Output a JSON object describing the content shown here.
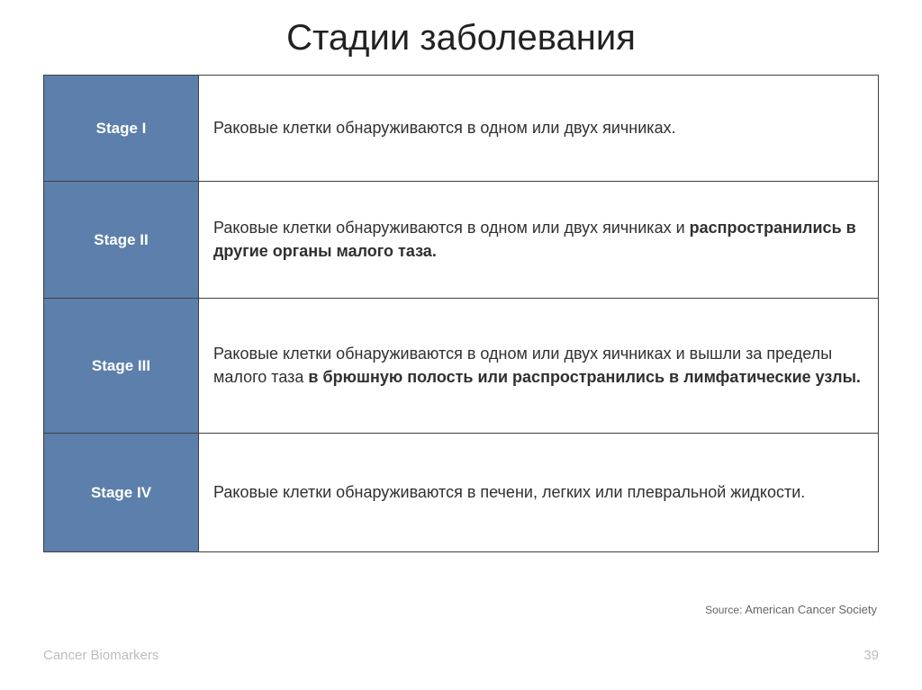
{
  "title": "Стадии заболевания",
  "table": {
    "rows": [
      {
        "stage": "Stage I",
        "desc_plain": "Раковые клетки обнаруживаются в одном или двух яичниках.",
        "desc_bold": ""
      },
      {
        "stage": "Stage II",
        "desc_plain": "Раковые клетки обнаруживаются в одном или двух яичниках и ",
        "desc_bold": "распространились в другие органы малого таза."
      },
      {
        "stage": "Stage III",
        "desc_plain": "Раковые клетки обнаруживаются в одном или двух яичниках и вышли за пределы малого таза ",
        "desc_bold": "в брюшную полость или распространились в лимфатические узлы."
      },
      {
        "stage": "Stage IV",
        "desc_plain": "Раковые клетки обнаруживаются в печени, легких или плевральной жидкости.",
        "desc_bold": ""
      }
    ]
  },
  "source": {
    "label": "Source:",
    "name": "American Cancer Society"
  },
  "footer": {
    "left": "Cancer Biomarkers",
    "page": "39"
  },
  "colors": {
    "header_bg": "#5c7fab",
    "header_text": "#ffffff",
    "border": "#404040",
    "body_text": "#303030",
    "footer_text": "#bdbdbd",
    "background": "#ffffff"
  }
}
